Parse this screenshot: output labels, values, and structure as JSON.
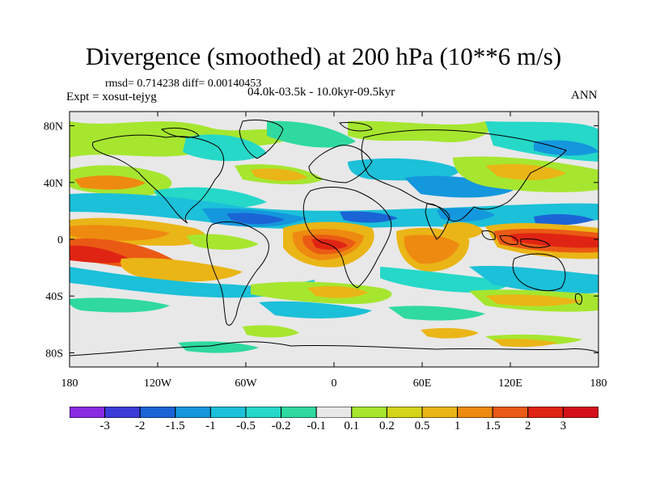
{
  "title": "Divergence (smoothed) at 200 hPa (10**6 m/s)",
  "stats": "rmsd= 0.714238 diff= 0.00140453",
  "expt": "Expt = xosut-tejyg",
  "period": "04.0k-03.5k - 10.0kyr-09.5kyr",
  "season": "ANN",
  "lat_labels": [
    "80N",
    "40N",
    "0",
    "40S",
    "80S"
  ],
  "lon_labels": [
    "180",
    "120W",
    "60W",
    "0",
    "60E",
    "120E",
    "180"
  ],
  "colorbar": {
    "labels": [
      "-3",
      "-2",
      "-1.5",
      "-1",
      "-0.5",
      "-0.2",
      "-0.1",
      "0.1",
      "0.2",
      "0.5",
      "1",
      "1.5",
      "2",
      "3"
    ],
    "colors": [
      "#8a2be2",
      "#3c3cd8",
      "#1b64d6",
      "#1497dd",
      "#1cc0d8",
      "#25d8c8",
      "#2fd9a0",
      "#e8e8e8",
      "#a6e62f",
      "#d4d41a",
      "#eab516",
      "#ee8a10",
      "#ea5a14",
      "#e02414",
      "#d4101a"
    ]
  }
}
